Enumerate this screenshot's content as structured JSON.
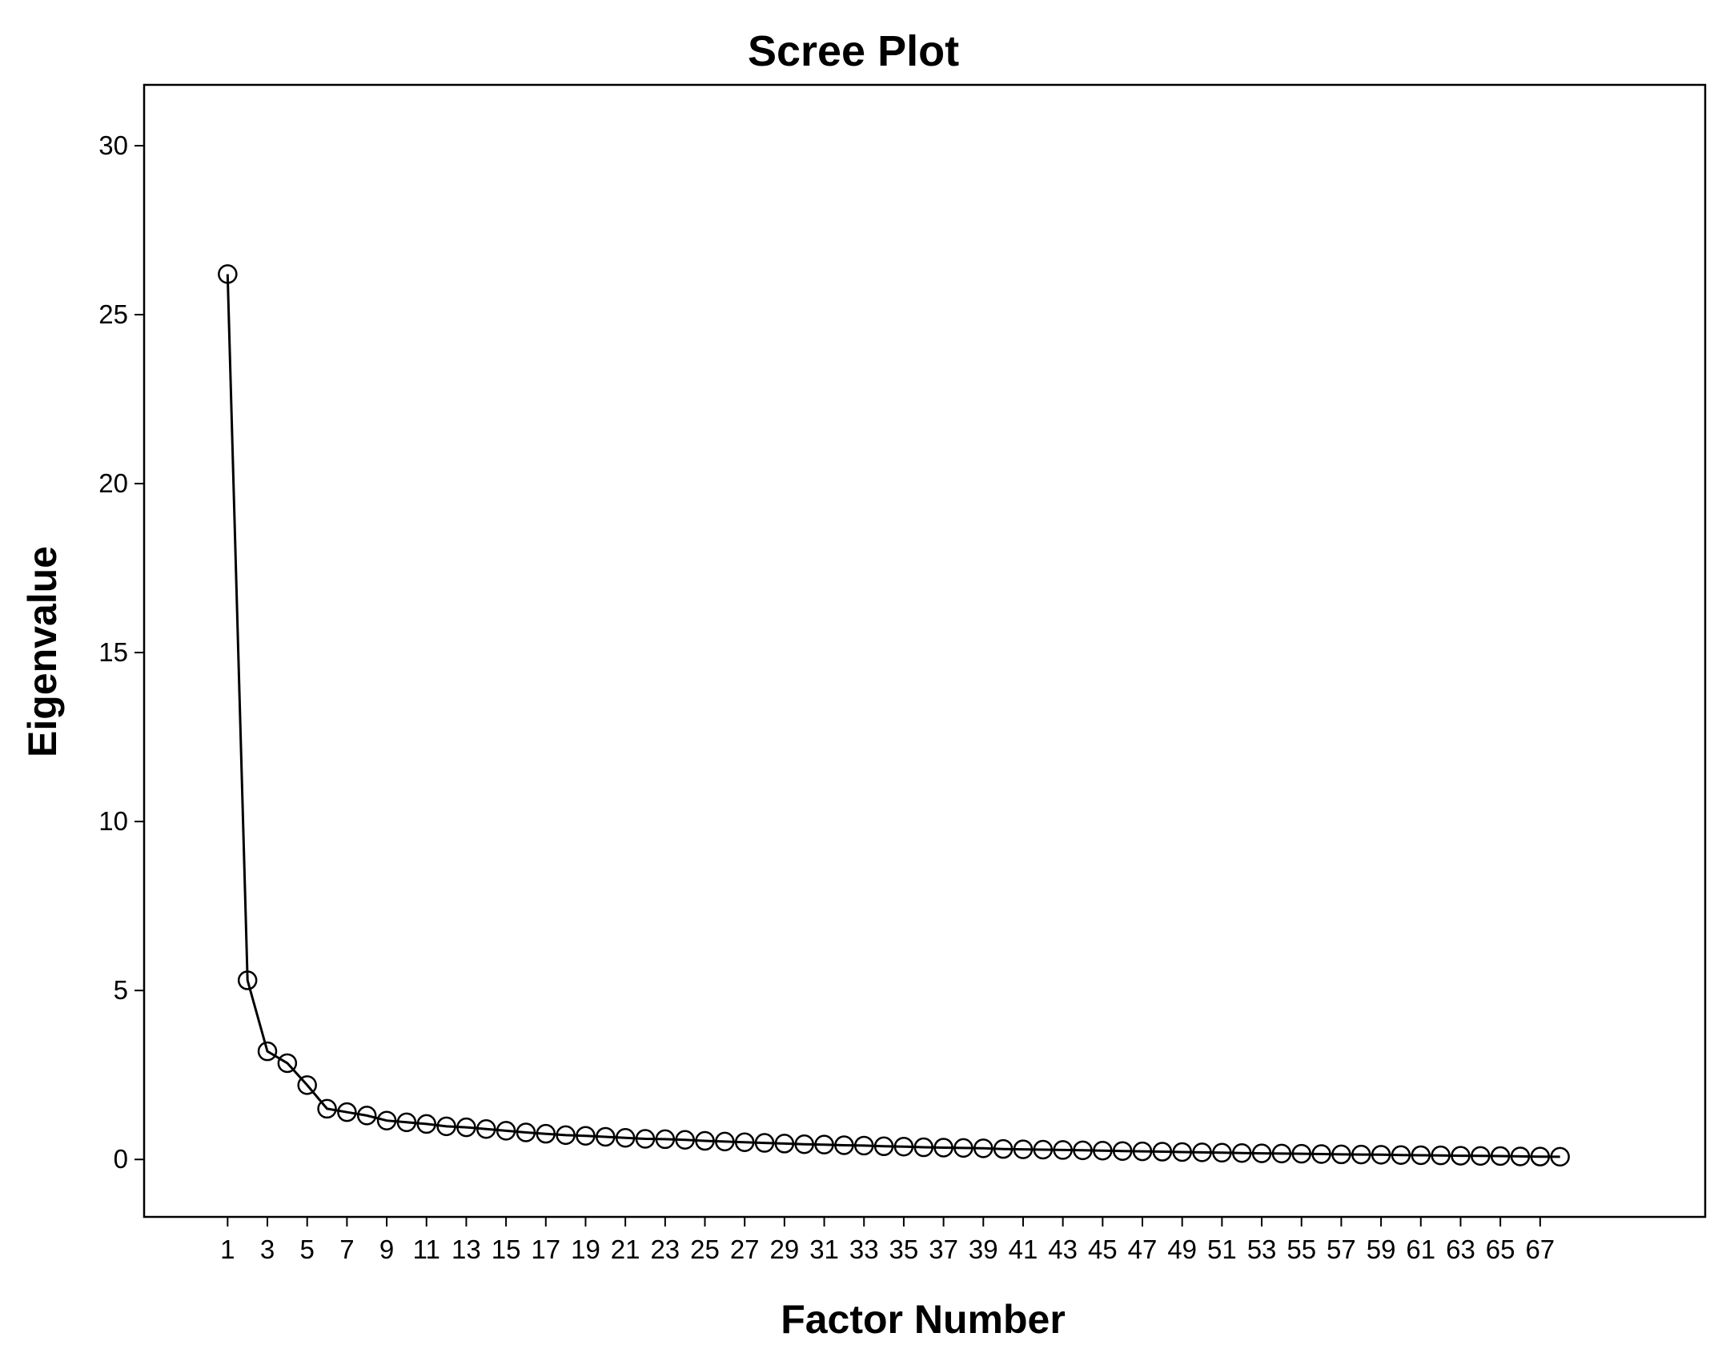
{
  "chart_data": {
    "type": "line",
    "title": "Scree Plot",
    "xlabel": "Factor Number",
    "ylabel": "Eigenvalue",
    "x": [
      1,
      2,
      3,
      4,
      5,
      6,
      7,
      8,
      9,
      10,
      11,
      12,
      13,
      14,
      15,
      16,
      17,
      18,
      19,
      20,
      21,
      22,
      23,
      24,
      25,
      26,
      27,
      28,
      29,
      30,
      31,
      32,
      33,
      34,
      35,
      36,
      37,
      38,
      39,
      40,
      41,
      42,
      43,
      44,
      45,
      46,
      47,
      48,
      49,
      50,
      51,
      52,
      53,
      54,
      55,
      56,
      57,
      58,
      59,
      60,
      61,
      62,
      63,
      64,
      65,
      66,
      67,
      68
    ],
    "series": [
      {
        "values": [
          26.2,
          5.3,
          3.2,
          2.85,
          2.2,
          1.5,
          1.4,
          1.3,
          1.15,
          1.1,
          1.05,
          0.98,
          0.95,
          0.9,
          0.85,
          0.8,
          0.76,
          0.72,
          0.7,
          0.67,
          0.64,
          0.61,
          0.6,
          0.58,
          0.55,
          0.53,
          0.51,
          0.49,
          0.47,
          0.45,
          0.44,
          0.42,
          0.41,
          0.39,
          0.38,
          0.36,
          0.35,
          0.34,
          0.33,
          0.31,
          0.3,
          0.29,
          0.28,
          0.27,
          0.26,
          0.25,
          0.24,
          0.23,
          0.22,
          0.21,
          0.2,
          0.19,
          0.18,
          0.175,
          0.17,
          0.16,
          0.15,
          0.145,
          0.14,
          0.13,
          0.125,
          0.12,
          0.11,
          0.105,
          0.1,
          0.09,
          0.085,
          0.08
        ]
      }
    ],
    "xticks": [
      1,
      3,
      5,
      7,
      9,
      11,
      13,
      15,
      17,
      19,
      21,
      23,
      25,
      27,
      29,
      31,
      33,
      35,
      37,
      39,
      41,
      43,
      45,
      47,
      49,
      51,
      53,
      55,
      57,
      59,
      61,
      63,
      65,
      67
    ],
    "yticks": [
      0,
      5,
      10,
      15,
      20,
      25,
      30
    ],
    "xlim": [
      -3.2,
      75.3
    ],
    "ylim": [
      -1.7,
      31.8
    ],
    "grid": false,
    "legend": "none",
    "colors": {
      "line": "#000000",
      "marker_stroke": "#000000",
      "marker_fill": "none",
      "frame": "#000000"
    }
  }
}
